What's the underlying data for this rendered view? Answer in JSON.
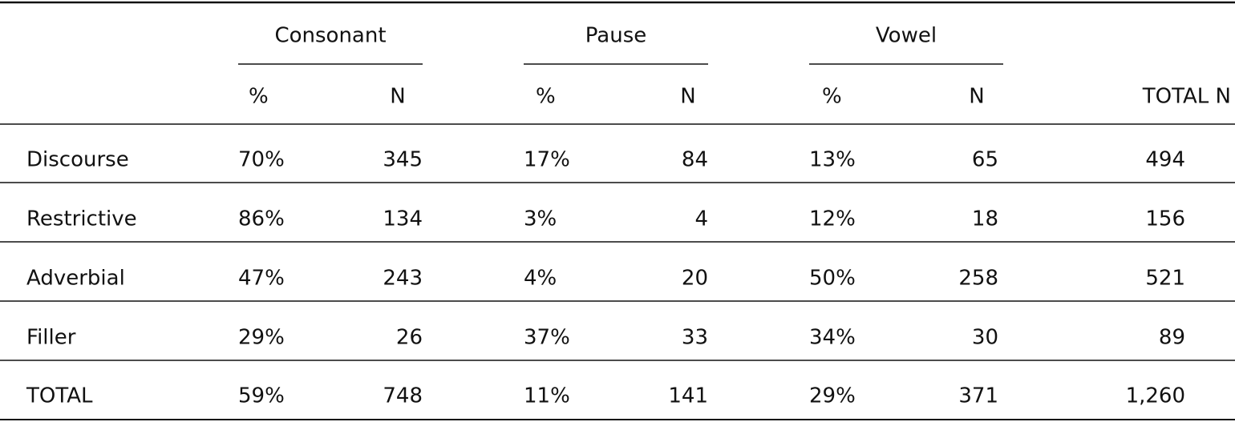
{
  "table": {
    "groups": [
      "Consonant",
      "Pause",
      "Vowel"
    ],
    "subheaders": [
      "%",
      "N",
      "%",
      "N",
      "%",
      "N",
      "TOTAL N"
    ],
    "rows": [
      [
        "Discourse",
        "70%",
        "345",
        "17%",
        "84",
        "13%",
        "65",
        "494"
      ],
      [
        "Restrictive",
        "86%",
        "134",
        "3%",
        "4",
        "12%",
        "18",
        "156"
      ],
      [
        "Adverbial",
        "47%",
        "243",
        "4%",
        "20",
        "50%",
        "258",
        "521"
      ],
      [
        "Filler",
        "29%",
        "26",
        "37%",
        "33",
        "34%",
        "30",
        "89"
      ],
      [
        "TOTAL",
        "59%",
        "748",
        "11%",
        "141",
        "29%",
        "371",
        "1,260"
      ]
    ]
  }
}
